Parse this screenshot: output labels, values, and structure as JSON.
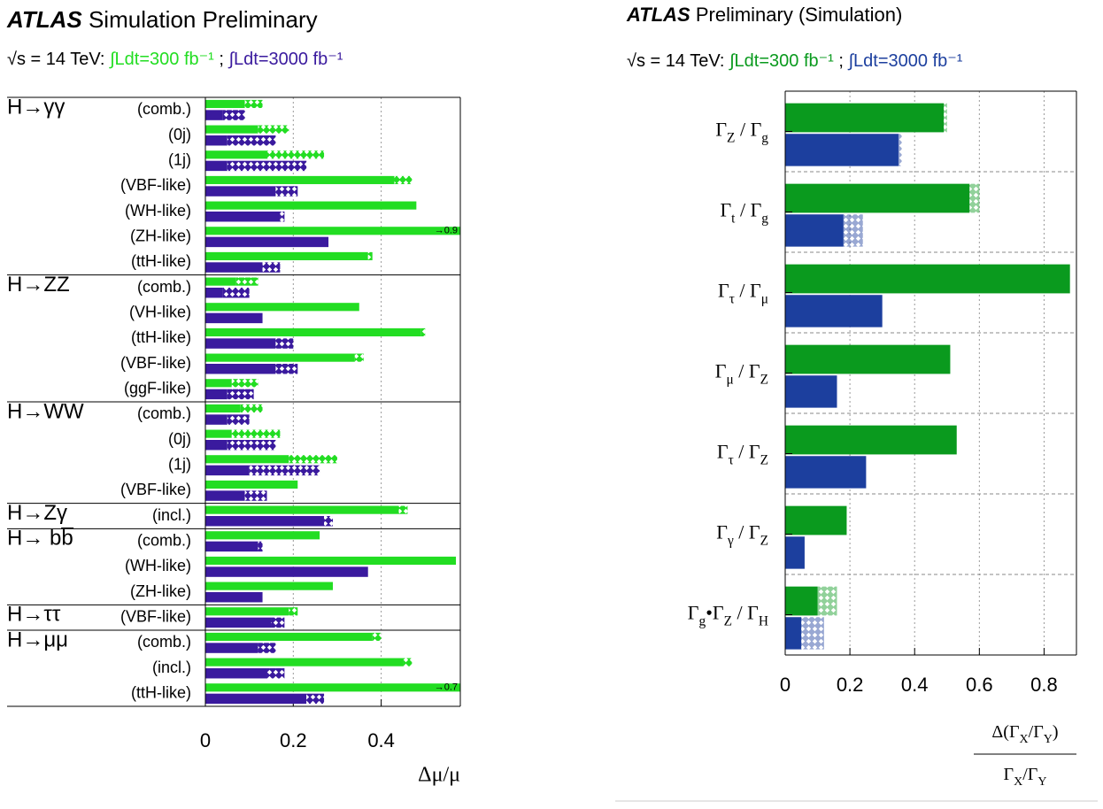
{
  "chart_data": [
    {
      "type": "bar",
      "orientation": "horizontal",
      "brand": "ATLAS",
      "title": "Simulation Preliminary",
      "energy_label": "√s = 14 TeV:",
      "legend_separator": ";",
      "xlabel": "Δμ/μ",
      "groups": [
        "H→γγ",
        null,
        null,
        null,
        null,
        null,
        null,
        "H→ZZ",
        null,
        null,
        null,
        null,
        "H→WW",
        null,
        null,
        null,
        "H→Zγ",
        "H→ bb̅",
        null,
        null,
        "H→ττ",
        "H→μμ",
        null,
        null
      ],
      "categories": [
        "(comb.)",
        "(0j)",
        "(1j)",
        "(VBF-like)",
        "(WH-like)",
        "(ZH-like)",
        "(ttH-like)",
        "(comb.)",
        "(VH-like)",
        "(ttH-like)",
        "(VBF-like)",
        "(ggF-like)",
        "(comb.)",
        "(0j)",
        "(1j)",
        "(VBF-like)",
        "(incl.)",
        "(comb.)",
        "(WH-like)",
        "(ZH-like)",
        "(VBF-like)",
        "(comb.)",
        "(incl.)",
        "(ttH-like)"
      ],
      "series": [
        {
          "name": "∫Ldt=300 fb⁻¹",
          "color": "#22dd22",
          "values": [
            0.09,
            0.12,
            0.14,
            0.43,
            0.48,
            0.9,
            0.37,
            0.07,
            0.35,
            0.49,
            0.34,
            0.06,
            0.08,
            0.06,
            0.19,
            0.21,
            0.44,
            0.26,
            0.57,
            0.29,
            0.19,
            0.38,
            0.45,
            0.7
          ],
          "hatched_values": [
            0.04,
            0.07,
            0.13,
            0.04,
            0,
            0,
            0.01,
            0.05,
            0,
            0.01,
            0.02,
            0.06,
            0.05,
            0.11,
            0.11,
            0,
            0.02,
            0,
            0,
            0,
            0.02,
            0.02,
            0.02,
            0
          ],
          "value_labels": [
            null,
            null,
            null,
            null,
            null,
            "→0.9",
            null,
            null,
            null,
            null,
            null,
            null,
            null,
            null,
            null,
            null,
            null,
            null,
            null,
            null,
            null,
            null,
            null,
            "→0.7"
          ]
        },
        {
          "name": "∫Ldt=3000 fb⁻¹",
          "color": "#3a1a9e",
          "values": [
            0.04,
            0.05,
            0.05,
            0.16,
            0.17,
            0.28,
            0.13,
            0.04,
            0.13,
            0.16,
            0.16,
            0.05,
            0.05,
            0.05,
            0.1,
            0.09,
            0.27,
            0.12,
            0.37,
            0.13,
            0.15,
            0.12,
            0.14,
            0.23
          ],
          "hatched_values": [
            0.05,
            0.11,
            0.18,
            0.05,
            0.01,
            0,
            0.04,
            0.06,
            0,
            0.04,
            0.05,
            0.06,
            0.05,
            0.11,
            0.16,
            0.05,
            0.02,
            0.01,
            0,
            0,
            0.03,
            0.04,
            0.04,
            0.04
          ]
        }
      ],
      "xlim": [
        0,
        0.58
      ],
      "xticks": [
        0,
        0.2,
        0.4
      ],
      "grid": true
    },
    {
      "type": "bar",
      "orientation": "horizontal",
      "brand": "ATLAS",
      "title": "Preliminary (Simulation)",
      "energy_label": "√s = 14 TeV:",
      "legend_separator": ";",
      "xlabel_numerator": [
        "Δ(Γ",
        "X",
        "/Γ",
        "Y",
        ")"
      ],
      "xlabel_denominator": [
        "Γ",
        "X",
        "/Γ",
        "Y"
      ],
      "categories": [
        [
          "Γ",
          "Z",
          " / Γ",
          "g"
        ],
        [
          "Γ",
          "t",
          " / Γ",
          "g"
        ],
        [
          "Γ",
          "τ",
          " / Γ",
          "μ"
        ],
        [
          "Γ",
          "μ",
          " / Γ",
          "Z"
        ],
        [
          "Γ",
          "τ",
          " / Γ",
          "Z"
        ],
        [
          "Γ",
          "γ",
          " / Γ",
          "Z"
        ],
        [
          "Γ",
          "g",
          "•Γ",
          "Z",
          " / Γ",
          "H"
        ]
      ],
      "series": [
        {
          "name": "∫Ldt=300 fb⁻¹",
          "color": "#0a9a1e",
          "values": [
            0.49,
            0.57,
            0.88,
            0.51,
            0.53,
            0.19,
            0.1
          ],
          "hatched_values": [
            0.01,
            0.03,
            0,
            0,
            0,
            0,
            0.06
          ]
        },
        {
          "name": "∫Ldt=3000 fb⁻¹",
          "color": "#1c3f9e",
          "values": [
            0.35,
            0.18,
            0.3,
            0.16,
            0.25,
            0.06,
            0.05
          ],
          "hatched_values": [
            0.01,
            0.06,
            0,
            0,
            0,
            0,
            0.07
          ]
        }
      ],
      "xlim": [
        0,
        0.9
      ],
      "xticks": [
        0,
        0.2,
        0.4,
        0.6,
        0.8
      ],
      "grid": true
    }
  ]
}
